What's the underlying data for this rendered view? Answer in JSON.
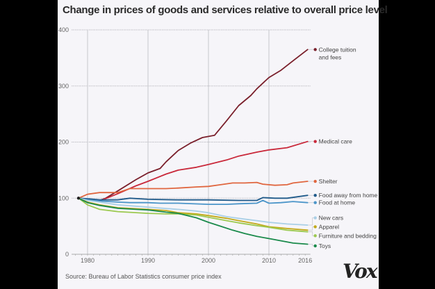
{
  "chart_data": {
    "type": "line",
    "title": "Change in prices of goods and services relative to overall price level",
    "xlabel": "",
    "ylabel": "",
    "xlim": [
      1978.5,
      2016.4
    ],
    "ylim": [
      0,
      400
    ],
    "x_ticks": [
      "1980",
      "1990",
      "2000",
      "2010",
      "2016"
    ],
    "x_tick_values": [
      1980,
      1990,
      2000,
      2010,
      2016
    ],
    "y_ticks": [
      "0",
      "100",
      "200",
      "300",
      "400"
    ],
    "y_tick_values": [
      0,
      100,
      200,
      300,
      400
    ],
    "grid": true,
    "legend_placement": "right (end-of-line labels)",
    "series": [
      {
        "name": "College tuition and fees",
        "label_lines": [
          "College tuition",
          "and fees"
        ],
        "color": "#7a1f2b",
        "points": [
          [
            1978.5,
            100
          ],
          [
            1980,
            98
          ],
          [
            1982,
            96
          ],
          [
            1983,
            100
          ],
          [
            1985,
            113
          ],
          [
            1988,
            133
          ],
          [
            1990,
            145
          ],
          [
            1992,
            153
          ],
          [
            1993,
            165
          ],
          [
            1995,
            185
          ],
          [
            1997,
            198
          ],
          [
            1999,
            208
          ],
          [
            2001,
            212
          ],
          [
            2003,
            238
          ],
          [
            2005,
            265
          ],
          [
            2007,
            283
          ],
          [
            2008,
            295
          ],
          [
            2010,
            315
          ],
          [
            2012,
            328
          ],
          [
            2014,
            345
          ],
          [
            2016.4,
            365
          ]
        ]
      },
      {
        "name": "Medical care",
        "label_lines": [
          "Medical care"
        ],
        "color": "#c9283a",
        "points": [
          [
            1978.5,
            100
          ],
          [
            1980,
            97
          ],
          [
            1982,
            95
          ],
          [
            1985,
            108
          ],
          [
            1988,
            122
          ],
          [
            1990,
            130
          ],
          [
            1993,
            143
          ],
          [
            1995,
            150
          ],
          [
            1998,
            155
          ],
          [
            2000,
            160
          ],
          [
            2003,
            168
          ],
          [
            2005,
            175
          ],
          [
            2008,
            182
          ],
          [
            2010,
            186
          ],
          [
            2013,
            190
          ],
          [
            2016.4,
            201
          ]
        ]
      },
      {
        "name": "Shelter",
        "label_lines": [
          "Shelter"
        ],
        "color": "#e0663f",
        "points": [
          [
            1978.5,
            100
          ],
          [
            1980,
            107
          ],
          [
            1982,
            110
          ],
          [
            1985,
            110
          ],
          [
            1987,
            117
          ],
          [
            1990,
            117
          ],
          [
            1993,
            117
          ],
          [
            1995,
            118
          ],
          [
            1998,
            120
          ],
          [
            2000,
            121
          ],
          [
            2002,
            124
          ],
          [
            2004,
            127
          ],
          [
            2006,
            127
          ],
          [
            2008,
            128
          ],
          [
            2009,
            125
          ],
          [
            2011,
            123
          ],
          [
            2013,
            124
          ],
          [
            2014,
            127
          ],
          [
            2016.4,
            130
          ]
        ]
      },
      {
        "name": "Food away from home",
        "label_lines": [
          "Food away from home"
        ],
        "color": "#1f5a8a",
        "points": [
          [
            1978.5,
            100
          ],
          [
            1980,
            99
          ],
          [
            1982,
            97
          ],
          [
            1985,
            97
          ],
          [
            1987,
            100
          ],
          [
            1990,
            98
          ],
          [
            1995,
            97
          ],
          [
            2000,
            97
          ],
          [
            2005,
            96
          ],
          [
            2008,
            96
          ],
          [
            2009,
            101
          ],
          [
            2011,
            100
          ],
          [
            2013,
            100
          ],
          [
            2016.4,
            105
          ]
        ]
      },
      {
        "name": "Food at home",
        "label_lines": [
          "Food at home"
        ],
        "color": "#4b95c9",
        "points": [
          [
            1978.5,
            100
          ],
          [
            1980,
            97
          ],
          [
            1982,
            95
          ],
          [
            1985,
            93
          ],
          [
            1987,
            92
          ],
          [
            1990,
            92
          ],
          [
            1992,
            91
          ],
          [
            1995,
            91
          ],
          [
            2000,
            89
          ],
          [
            2003,
            89
          ],
          [
            2005,
            90
          ],
          [
            2008,
            91
          ],
          [
            2009,
            96
          ],
          [
            2010,
            91
          ],
          [
            2012,
            92
          ],
          [
            2014,
            94
          ],
          [
            2016.4,
            92
          ]
        ]
      },
      {
        "name": "New cars",
        "label_lines": [
          "New cars"
        ],
        "color": "#a9cfe6",
        "points": [
          [
            1978.5,
            100
          ],
          [
            1980,
            96
          ],
          [
            1982,
            93
          ],
          [
            1985,
            88
          ],
          [
            1990,
            84
          ],
          [
            1995,
            80
          ],
          [
            1998,
            77
          ],
          [
            2000,
            74
          ],
          [
            2003,
            67
          ],
          [
            2005,
            64
          ],
          [
            2008,
            60
          ],
          [
            2010,
            57
          ],
          [
            2013,
            54
          ],
          [
            2016.4,
            52
          ]
        ]
      },
      {
        "name": "Apparel",
        "label_lines": [
          "Apparel"
        ],
        "color": "#c2a917",
        "points": [
          [
            1978.5,
            100
          ],
          [
            1980,
            93
          ],
          [
            1982,
            88
          ],
          [
            1985,
            83
          ],
          [
            1990,
            80
          ],
          [
            1993,
            78
          ],
          [
            1995,
            74
          ],
          [
            1998,
            72
          ],
          [
            2000,
            69
          ],
          [
            2003,
            64
          ],
          [
            2005,
            60
          ],
          [
            2008,
            54
          ],
          [
            2010,
            49
          ],
          [
            2013,
            46
          ],
          [
            2016.4,
            43
          ]
        ]
      },
      {
        "name": "Furniture and bedding",
        "label_lines": [
          "Furniture and bedding"
        ],
        "color": "#9cc94f",
        "points": [
          [
            1978.5,
            100
          ],
          [
            1980,
            88
          ],
          [
            1982,
            80
          ],
          [
            1985,
            76
          ],
          [
            1990,
            73
          ],
          [
            1993,
            72
          ],
          [
            1995,
            72
          ],
          [
            1998,
            70
          ],
          [
            2000,
            66
          ],
          [
            2003,
            60
          ],
          [
            2005,
            56
          ],
          [
            2008,
            51
          ],
          [
            2010,
            48
          ],
          [
            2013,
            43
          ],
          [
            2016.4,
            40
          ]
        ]
      },
      {
        "name": "Toys",
        "label_lines": [
          "Toys"
        ],
        "color": "#1a8a4b",
        "points": [
          [
            1978.5,
            100
          ],
          [
            1980,
            92
          ],
          [
            1982,
            87
          ],
          [
            1985,
            82
          ],
          [
            1988,
            80
          ],
          [
            1990,
            79
          ],
          [
            1993,
            75
          ],
          [
            1995,
            73
          ],
          [
            1998,
            65
          ],
          [
            2000,
            57
          ],
          [
            2002,
            50
          ],
          [
            2004,
            43
          ],
          [
            2006,
            37
          ],
          [
            2008,
            32
          ],
          [
            2010,
            28
          ],
          [
            2012,
            24
          ],
          [
            2014,
            20
          ],
          [
            2016.4,
            18
          ]
        ]
      }
    ]
  },
  "source": "Source: Bureau of Labor Statistics consumer price index",
  "logo": "Vox"
}
